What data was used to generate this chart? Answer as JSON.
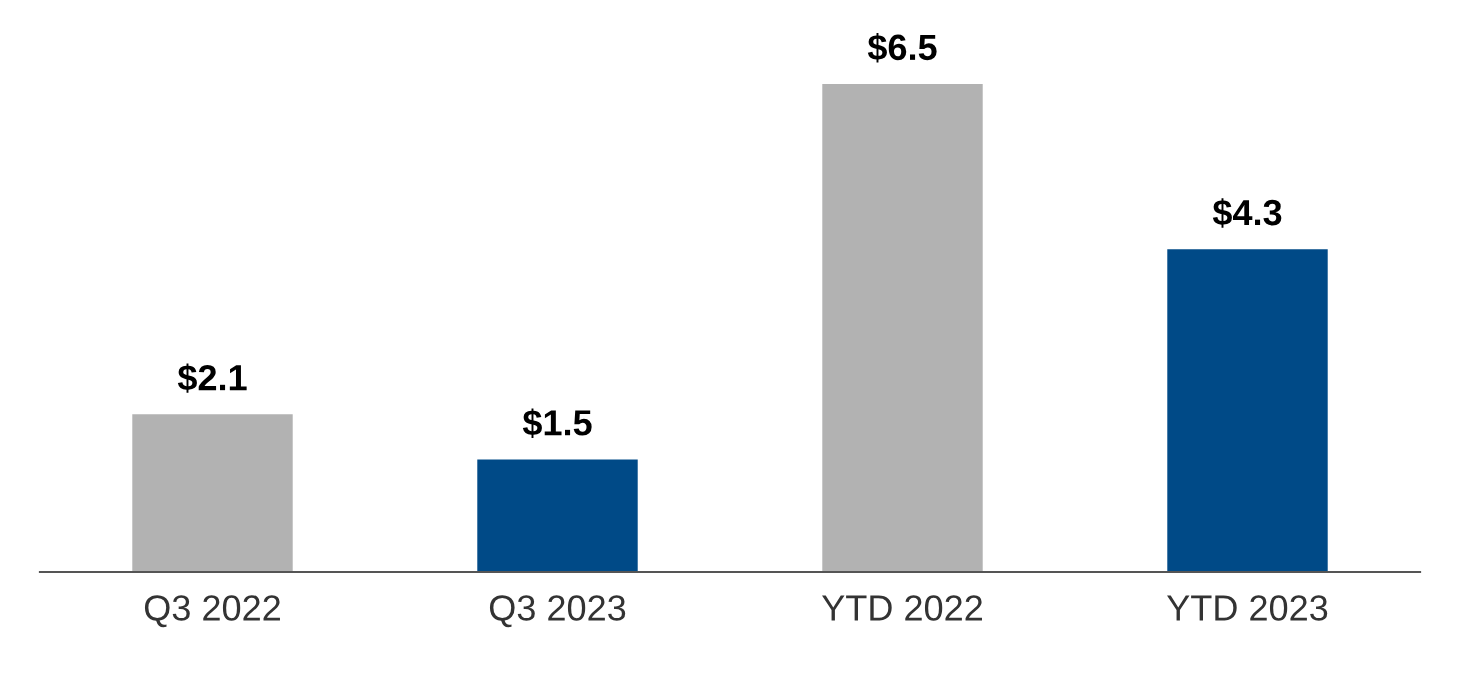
{
  "chart_data": {
    "type": "bar",
    "categories": [
      "Q3 2022",
      "Q3 2023",
      "YTD 2022",
      "YTD 2023"
    ],
    "values": [
      2.1,
      1.5,
      6.5,
      4.3
    ],
    "colors": [
      "#b2b2b2",
      "#004a87",
      "#b2b2b2",
      "#004a87"
    ],
    "value_labels": [
      "$2.1",
      "$1.5",
      "$6.5",
      "$4.3"
    ],
    "grid": false,
    "legend": false
  }
}
